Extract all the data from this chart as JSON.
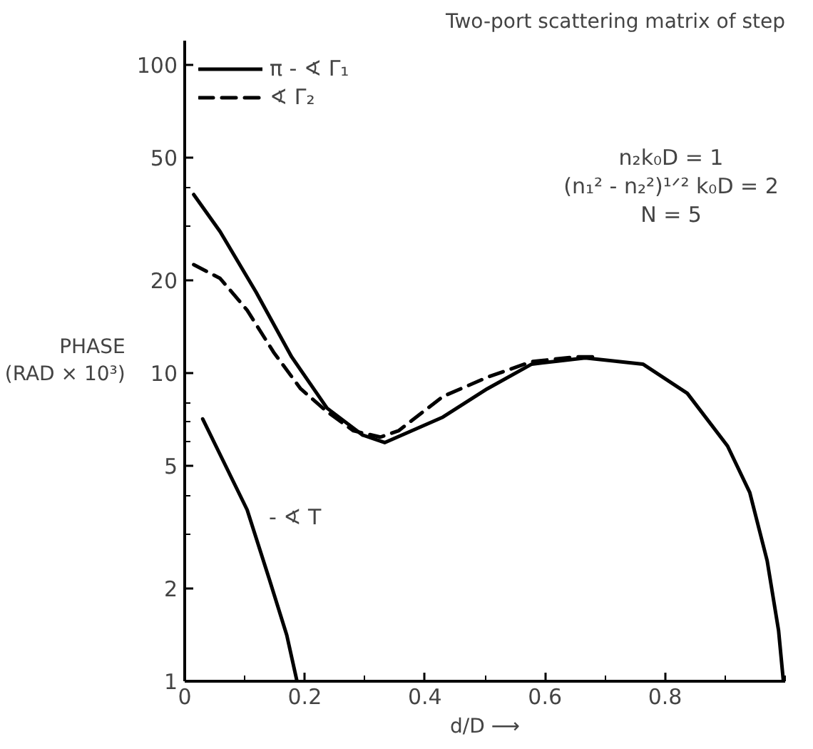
{
  "chart_data": {
    "type": "line",
    "title": "Two-port scattering matrix of step",
    "xlabel": "d/D ⟶",
    "ylabel": "PHASE\n(RAD × 10³)",
    "log": "y",
    "xlim": [
      0,
      1
    ],
    "ylim": [
      1,
      120
    ],
    "xticks": [
      0,
      {
        "value": 0.1,
        "label": null
      },
      0.2,
      {
        "value": 0.3,
        "label": null
      },
      0.4,
      {
        "value": 0.5,
        "label": null
      },
      0.6,
      {
        "value": 0.7,
        "label": null
      },
      0.8,
      {
        "value": 0.9,
        "label": null
      },
      {
        "value": 1.0,
        "label": null
      }
    ],
    "yticks": [
      1,
      2,
      {
        "value": 3,
        "label": null
      },
      {
        "value": 4,
        "label": null
      },
      5,
      {
        "value": 6,
        "label": null
      },
      {
        "value": 7,
        "label": null
      },
      {
        "value": 8,
        "label": null
      },
      10,
      20,
      {
        "value": 30,
        "label": null
      },
      {
        "value": 40,
        "label": null
      },
      50,
      100
    ],
    "grid": false,
    "legend": "top left",
    "marker": "none",
    "series": [
      {
        "name": "π - ∢ Γ₁",
        "color": "#000000",
        "line_style": "solid",
        "x": [
          0.015,
          0.059,
          0.119,
          0.178,
          0.237,
          0.296,
          0.333,
          0.43,
          0.504,
          0.578,
          0.667,
          0.763,
          0.837,
          0.904,
          0.941,
          0.97,
          0.989,
          0.997
        ],
        "values": [
          38,
          28.8,
          18.3,
          11.3,
          7.7,
          6.3,
          5.95,
          7.2,
          8.9,
          10.7,
          11.2,
          10.7,
          8.6,
          5.8,
          4.1,
          2.46,
          1.46,
          1
        ]
      },
      {
        "name": "∢ Γ₂",
        "color": "#000000",
        "line_style": "dashed",
        "x": [
          0.015,
          0.059,
          0.104,
          0.148,
          0.193,
          0.237,
          0.281,
          0.326,
          0.356,
          0.43,
          0.504,
          0.578,
          0.652,
          0.68
        ],
        "values": [
          22.5,
          20.3,
          16,
          11.7,
          8.9,
          7.5,
          6.5,
          6.2,
          6.5,
          8.4,
          9.7,
          10.9,
          11.3,
          11.3
        ]
      },
      {
        "color": "#000000",
        "line_style": "solid",
        "x": [
          0.03,
          0.052,
          0.104,
          0.141,
          0.17,
          0.187
        ],
        "values": [
          7.1,
          5.8,
          3.6,
          2.14,
          1.41,
          1
        ]
      }
    ],
    "annotations": [
      "- ∢ T",
      "n₂k₀D = 1",
      "(n₁² - n₂²)¹ᐟ² k₀D = 2",
      "N = 5"
    ]
  }
}
